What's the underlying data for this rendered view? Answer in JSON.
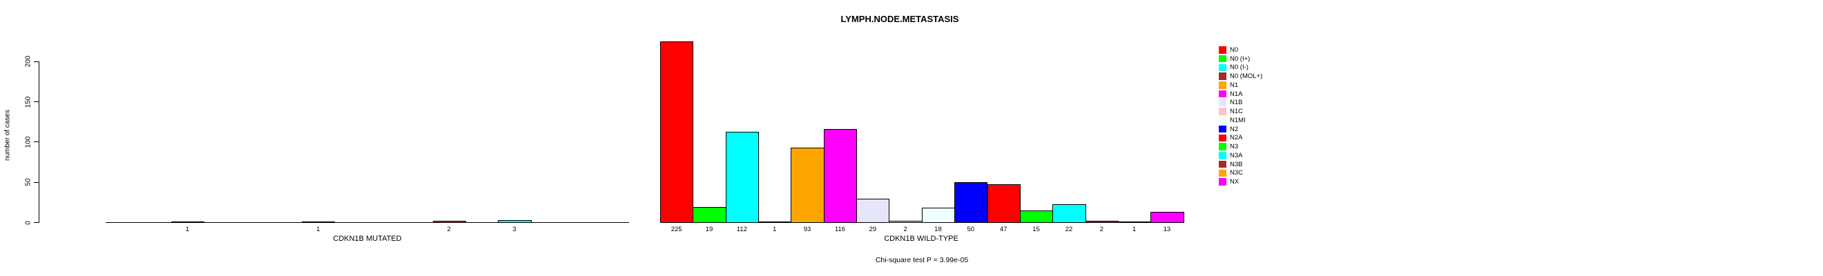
{
  "title": "LYMPH.NODE.METASTASIS",
  "chart_data": {
    "type": "bar",
    "title": "LYMPH.NODE.METASTASIS",
    "xlabel": "",
    "ylabel": "number of cases",
    "ylim": [
      0,
      234
    ],
    "yticks": [
      0,
      50,
      100,
      150,
      200
    ],
    "grid": false,
    "legend_position": "right",
    "categories": [
      "N0",
      "N0 (I+)",
      "N0 (I-)",
      "N0 (MOL+)",
      "N1",
      "N1A",
      "N1B",
      "N1C",
      "N1MI",
      "N2",
      "N2A",
      "N3",
      "N3A",
      "N3B",
      "N3C",
      "NX"
    ],
    "colors": [
      "#FF0000",
      "#00FF00",
      "#00FFFF",
      "#A52A2A",
      "#FFA500",
      "#FF00FF",
      "#E6E6FA",
      "#FFC0CB",
      "#F0FFFF",
      "#0000FF",
      "#FF0000",
      "#00FF00",
      "#00FFFF",
      "#A52A2A",
      "#FFA500",
      "#FF00FF"
    ],
    "series": [
      {
        "name": "CDKN1B MUTATED",
        "values": [
          0,
          0,
          1,
          0,
          0,
          0,
          1,
          0,
          0,
          0,
          2,
          0,
          3,
          0,
          0,
          0
        ]
      },
      {
        "name": "CDKN1B WILD-TYPE",
        "values": [
          225,
          19,
          112,
          1,
          93,
          116,
          29,
          2,
          18,
          50,
          47,
          15,
          22,
          2,
          1,
          13
        ]
      }
    ],
    "bar_value_labels_shown": true,
    "annotation": "Chi-square test P = 3.99e-05"
  }
}
